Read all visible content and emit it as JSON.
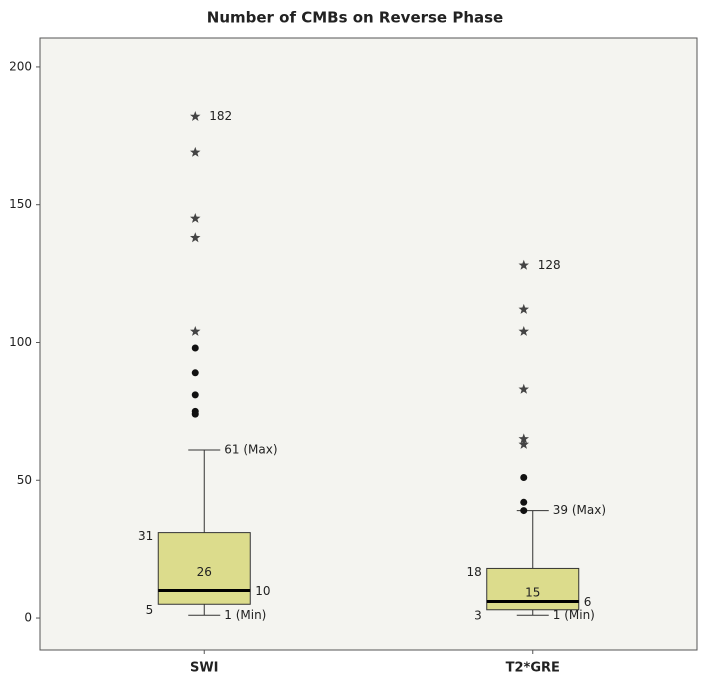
{
  "chart_data": {
    "type": "box",
    "title": "Number of CMBs on Reverse Phase",
    "categories": [
      "SWI",
      "T2*GRE"
    ],
    "series": [
      {
        "name": "SWI",
        "color": "#dcdc8c",
        "min": 1,
        "min_label": "1 (Min)",
        "q1": 5,
        "median": 10,
        "q3": 31,
        "iqr": 26,
        "max": 61,
        "max_label": "61 (Max)",
        "outliers": [
          98,
          89,
          81,
          75,
          74
        ],
        "extremes": [
          182,
          169,
          145,
          138,
          104
        ]
      },
      {
        "name": "T2*GRE",
        "color": "#dcdc8c",
        "min": 1,
        "min_label": "1 (Min)",
        "q1": 3,
        "median": 6,
        "q3": 18,
        "iqr": 15,
        "max": 39,
        "max_label": "39 (Max)",
        "outliers": [
          51,
          42,
          39
        ],
        "extremes": [
          128,
          112,
          104,
          83,
          65,
          63
        ]
      }
    ],
    "ylim": [
      -11.6,
      210.5
    ],
    "yticks": [
      0,
      50,
      100,
      150,
      200
    ],
    "grid": false
  }
}
